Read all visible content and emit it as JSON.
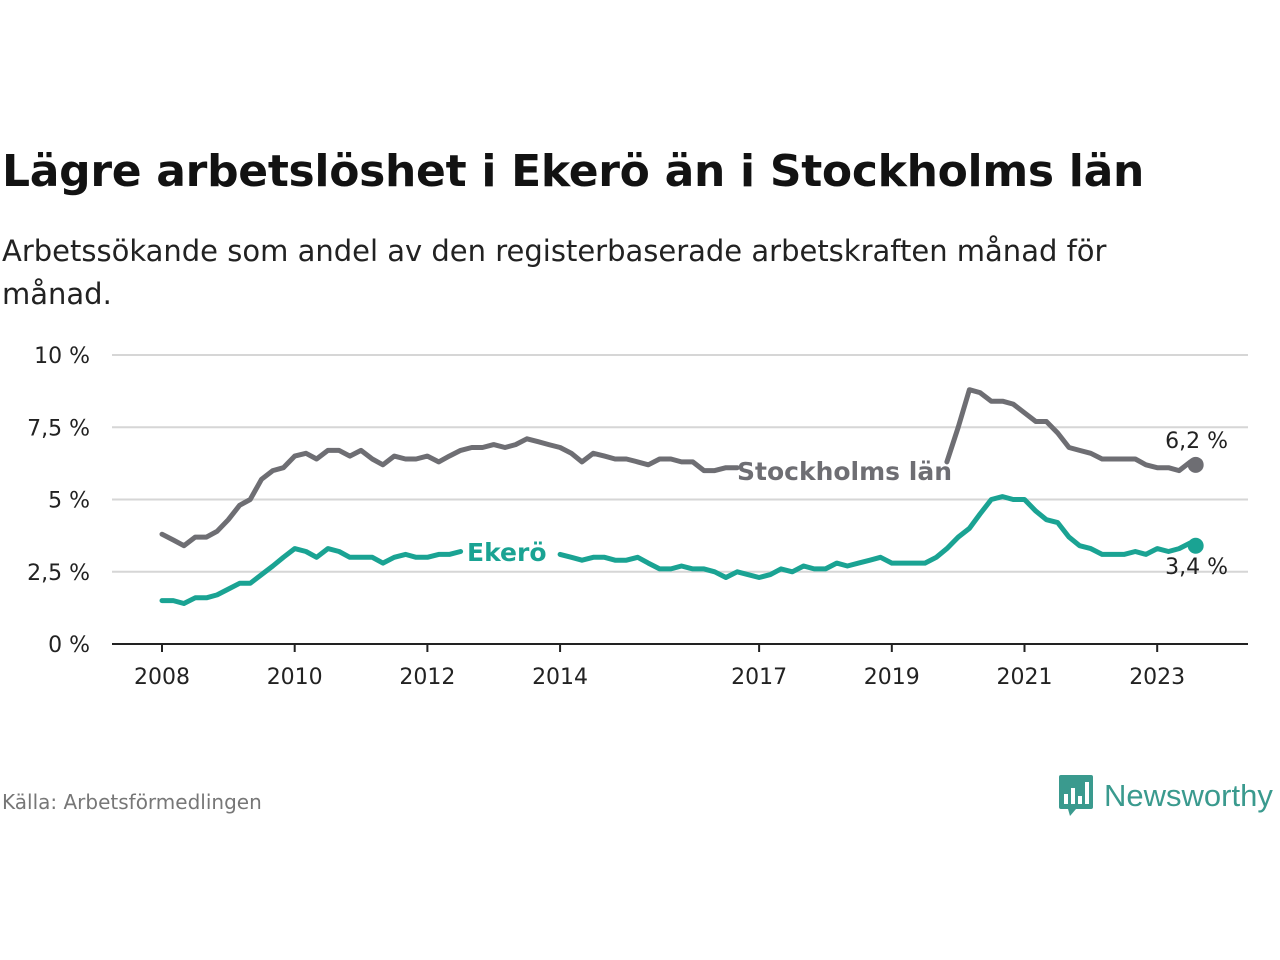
{
  "header": {
    "title": "Lägre arbetslöshet i Ekerö än i Stockholms län",
    "subtitle": "Arbetssökande som andel av den registerbaserade arbetskraften månad för månad."
  },
  "footer": {
    "source": "Källa: Arbetsförmedlingen",
    "brand": "Newsworthy",
    "brand_color": "#3a9a8e"
  },
  "chart_data": {
    "type": "line",
    "title": "Lägre arbetslöshet i Ekerö än i Stockholms län",
    "xlabel": "",
    "ylabel": "",
    "x_range": [
      2008,
      2023.6
    ],
    "ylim": [
      0,
      10
    ],
    "grid": true,
    "y_ticks": [
      {
        "value": 0,
        "label": "0 %"
      },
      {
        "value": 2.5,
        "label": "2,5 %"
      },
      {
        "value": 5,
        "label": "5 %"
      },
      {
        "value": 7.5,
        "label": "7,5 %"
      },
      {
        "value": 10,
        "label": "10 %"
      }
    ],
    "x_ticks": [
      {
        "value": 2008,
        "label": "2008"
      },
      {
        "value": 2010,
        "label": "2010"
      },
      {
        "value": 2012,
        "label": "2012"
      },
      {
        "value": 2014,
        "label": "2014"
      },
      {
        "value": 2017,
        "label": "2017"
      },
      {
        "value": 2019,
        "label": "2019"
      },
      {
        "value": 2021,
        "label": "2021"
      },
      {
        "value": 2023,
        "label": "2023"
      }
    ],
    "series": [
      {
        "name": "Stockholms län",
        "color": "#6e6e73",
        "end_label": "6,2 %",
        "points": [
          [
            2008.0,
            3.8
          ],
          [
            2008.17,
            3.6
          ],
          [
            2008.33,
            3.4
          ],
          [
            2008.5,
            3.7
          ],
          [
            2008.67,
            3.7
          ],
          [
            2008.83,
            3.9
          ],
          [
            2009.0,
            4.3
          ],
          [
            2009.17,
            4.8
          ],
          [
            2009.33,
            5.0
          ],
          [
            2009.5,
            5.7
          ],
          [
            2009.67,
            6.0
          ],
          [
            2009.83,
            6.1
          ],
          [
            2010.0,
            6.5
          ],
          [
            2010.17,
            6.6
          ],
          [
            2010.33,
            6.4
          ],
          [
            2010.5,
            6.7
          ],
          [
            2010.67,
            6.7
          ],
          [
            2010.83,
            6.5
          ],
          [
            2011.0,
            6.7
          ],
          [
            2011.17,
            6.4
          ],
          [
            2011.33,
            6.2
          ],
          [
            2011.5,
            6.5
          ],
          [
            2011.67,
            6.4
          ],
          [
            2011.83,
            6.4
          ],
          [
            2012.0,
            6.5
          ],
          [
            2012.17,
            6.3
          ],
          [
            2012.33,
            6.5
          ],
          [
            2012.5,
            6.7
          ],
          [
            2012.67,
            6.8
          ],
          [
            2012.83,
            6.8
          ],
          [
            2013.0,
            6.9
          ],
          [
            2013.17,
            6.8
          ],
          [
            2013.33,
            6.9
          ],
          [
            2013.5,
            7.1
          ],
          [
            2013.67,
            7.0
          ],
          [
            2013.83,
            6.9
          ],
          [
            2014.0,
            6.8
          ],
          [
            2014.17,
            6.6
          ],
          [
            2014.33,
            6.3
          ],
          [
            2014.5,
            6.6
          ],
          [
            2014.67,
            6.5
          ],
          [
            2014.83,
            6.4
          ],
          [
            2015.0,
            6.4
          ],
          [
            2015.17,
            6.3
          ],
          [
            2015.33,
            6.2
          ],
          [
            2015.5,
            6.4
          ],
          [
            2015.67,
            6.4
          ],
          [
            2015.83,
            6.3
          ],
          [
            2016.0,
            6.3
          ],
          [
            2016.17,
            6.0
          ],
          [
            2016.33,
            6.0
          ],
          [
            2016.5,
            6.1
          ],
          [
            2016.67,
            6.1
          ],
          [
            2019.83,
            6.3
          ],
          [
            2020.0,
            7.5
          ],
          [
            2020.17,
            8.8
          ],
          [
            2020.33,
            8.7
          ],
          [
            2020.5,
            8.4
          ],
          [
            2020.67,
            8.4
          ],
          [
            2020.83,
            8.3
          ],
          [
            2021.0,
            8.0
          ],
          [
            2021.17,
            7.7
          ],
          [
            2021.33,
            7.7
          ],
          [
            2021.5,
            7.3
          ],
          [
            2021.67,
            6.8
          ],
          [
            2021.83,
            6.7
          ],
          [
            2022.0,
            6.6
          ],
          [
            2022.17,
            6.4
          ],
          [
            2022.33,
            6.4
          ],
          [
            2022.5,
            6.4
          ],
          [
            2022.67,
            6.4
          ],
          [
            2022.83,
            6.2
          ],
          [
            2023.0,
            6.1
          ],
          [
            2023.17,
            6.1
          ],
          [
            2023.33,
            6.0
          ],
          [
            2023.5,
            6.3
          ],
          [
            2023.58,
            6.2
          ]
        ]
      },
      {
        "name": "Ekerö",
        "color": "#1aa393",
        "end_label": "3,4 %",
        "points": [
          [
            2008.0,
            1.5
          ],
          [
            2008.17,
            1.5
          ],
          [
            2008.33,
            1.4
          ],
          [
            2008.5,
            1.6
          ],
          [
            2008.67,
            1.6
          ],
          [
            2008.83,
            1.7
          ],
          [
            2009.0,
            1.9
          ],
          [
            2009.17,
            2.1
          ],
          [
            2009.33,
            2.1
          ],
          [
            2009.5,
            2.4
          ],
          [
            2009.67,
            2.7
          ],
          [
            2009.83,
            3.0
          ],
          [
            2010.0,
            3.3
          ],
          [
            2010.17,
            3.2
          ],
          [
            2010.33,
            3.0
          ],
          [
            2010.5,
            3.3
          ],
          [
            2010.67,
            3.2
          ],
          [
            2010.83,
            3.0
          ],
          [
            2011.0,
            3.0
          ],
          [
            2011.17,
            3.0
          ],
          [
            2011.33,
            2.8
          ],
          [
            2011.5,
            3.0
          ],
          [
            2011.67,
            3.1
          ],
          [
            2011.83,
            3.0
          ],
          [
            2012.0,
            3.0
          ],
          [
            2012.17,
            3.1
          ],
          [
            2012.33,
            3.1
          ],
          [
            2012.5,
            3.2
          ],
          [
            2014.0,
            3.1
          ],
          [
            2014.17,
            3.0
          ],
          [
            2014.33,
            2.9
          ],
          [
            2014.5,
            3.0
          ],
          [
            2014.67,
            3.0
          ],
          [
            2014.83,
            2.9
          ],
          [
            2015.0,
            2.9
          ],
          [
            2015.17,
            3.0
          ],
          [
            2015.33,
            2.8
          ],
          [
            2015.5,
            2.6
          ],
          [
            2015.67,
            2.6
          ],
          [
            2015.83,
            2.7
          ],
          [
            2016.0,
            2.6
          ],
          [
            2016.17,
            2.6
          ],
          [
            2016.33,
            2.5
          ],
          [
            2016.5,
            2.3
          ],
          [
            2016.67,
            2.5
          ],
          [
            2016.83,
            2.4
          ],
          [
            2017.0,
            2.3
          ],
          [
            2017.17,
            2.4
          ],
          [
            2017.33,
            2.6
          ],
          [
            2017.5,
            2.5
          ],
          [
            2017.67,
            2.7
          ],
          [
            2017.83,
            2.6
          ],
          [
            2018.0,
            2.6
          ],
          [
            2018.17,
            2.8
          ],
          [
            2018.33,
            2.7
          ],
          [
            2018.5,
            2.8
          ],
          [
            2018.67,
            2.9
          ],
          [
            2018.83,
            3.0
          ],
          [
            2019.0,
            2.8
          ],
          [
            2019.17,
            2.8
          ],
          [
            2019.33,
            2.8
          ],
          [
            2019.5,
            2.8
          ],
          [
            2019.67,
            3.0
          ],
          [
            2019.83,
            3.3
          ],
          [
            2020.0,
            3.7
          ],
          [
            2020.17,
            4.0
          ],
          [
            2020.33,
            4.5
          ],
          [
            2020.5,
            5.0
          ],
          [
            2020.67,
            5.1
          ],
          [
            2020.83,
            5.0
          ],
          [
            2021.0,
            5.0
          ],
          [
            2021.17,
            4.6
          ],
          [
            2021.33,
            4.3
          ],
          [
            2021.5,
            4.2
          ],
          [
            2021.67,
            3.7
          ],
          [
            2021.83,
            3.4
          ],
          [
            2022.0,
            3.3
          ],
          [
            2022.17,
            3.1
          ],
          [
            2022.33,
            3.1
          ],
          [
            2022.5,
            3.1
          ],
          [
            2022.67,
            3.2
          ],
          [
            2022.83,
            3.1
          ],
          [
            2023.0,
            3.3
          ],
          [
            2023.17,
            3.2
          ],
          [
            2023.33,
            3.3
          ],
          [
            2023.5,
            3.5
          ],
          [
            2023.58,
            3.4
          ]
        ]
      }
    ],
    "annotations": [
      {
        "text": "Stockholms län",
        "series": 0
      },
      {
        "text": "Ekerö",
        "series": 1
      }
    ]
  }
}
